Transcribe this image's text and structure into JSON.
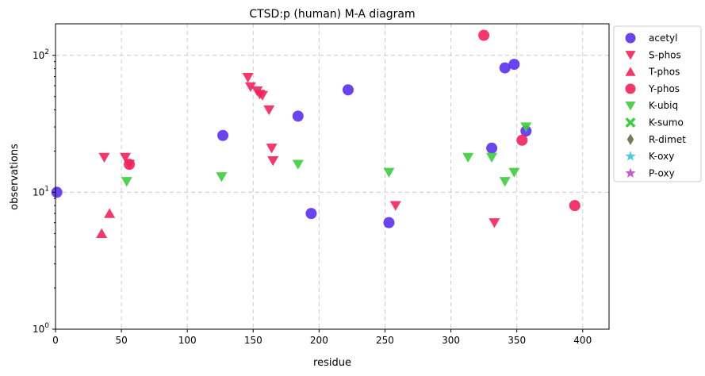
{
  "chart_data": {
    "type": "scatter",
    "title": "CTSD:p (human) M-A diagram",
    "xlabel": "residue",
    "ylabel": "observations",
    "xlim": [
      0,
      420
    ],
    "ylim": [
      1,
      170
    ],
    "yscale": "log",
    "grid": true,
    "legend_position": "outside-right",
    "xticks": [
      0,
      50,
      100,
      150,
      200,
      250,
      300,
      350,
      400
    ],
    "yticks": [
      {
        "value": 1,
        "base": "10",
        "exp": "0"
      },
      {
        "value": 10,
        "base": "10",
        "exp": "1"
      },
      {
        "value": 100,
        "base": "10",
        "exp": "2"
      }
    ],
    "series": [
      {
        "name": "acetyl",
        "marker": "circle",
        "color": "#5b2ff0",
        "points": [
          [
            1,
            10
          ],
          [
            127,
            26
          ],
          [
            184,
            36
          ],
          [
            194,
            7
          ],
          [
            222,
            56
          ],
          [
            253,
            6
          ],
          [
            331,
            21
          ],
          [
            341,
            81
          ],
          [
            348,
            86
          ],
          [
            357,
            28
          ]
        ]
      },
      {
        "name": "S-phos",
        "marker": "triangle-down",
        "color": "#f5215b",
        "points": [
          [
            37,
            18
          ],
          [
            53,
            18
          ],
          [
            56,
            16
          ],
          [
            146,
            69
          ],
          [
            148,
            59
          ],
          [
            153,
            55
          ],
          [
            155,
            52
          ],
          [
            157,
            51
          ],
          [
            162,
            40
          ],
          [
            164,
            21
          ],
          [
            165,
            17
          ],
          [
            258,
            8
          ],
          [
            333,
            6
          ]
        ]
      },
      {
        "name": "T-phos",
        "marker": "triangle-up",
        "color": "#f5215b",
        "points": [
          [
            35,
            5
          ],
          [
            41,
            7
          ]
        ]
      },
      {
        "name": "Y-phos",
        "marker": "circle",
        "color": "#f5215b",
        "points": [
          [
            56,
            16
          ],
          [
            325,
            140
          ],
          [
            354,
            24
          ],
          [
            394,
            8
          ]
        ]
      },
      {
        "name": "K-ubiq",
        "marker": "triangle-down",
        "color": "#3cce3c",
        "points": [
          [
            54,
            12
          ],
          [
            126,
            13
          ],
          [
            184,
            16
          ],
          [
            253,
            14
          ],
          [
            313,
            18
          ],
          [
            331,
            18
          ],
          [
            341,
            12
          ],
          [
            348,
            14
          ],
          [
            357,
            30
          ]
        ]
      },
      {
        "name": "K-sumo",
        "marker": "x",
        "color": "#3cce3c",
        "points": []
      },
      {
        "name": "R-dimet",
        "marker": "diamond",
        "color": "#6b6b45",
        "points": []
      },
      {
        "name": "K-oxy",
        "marker": "star",
        "color": "#3fc9d3",
        "points": []
      },
      {
        "name": "P-oxy",
        "marker": "star",
        "color": "#c447c9",
        "points": []
      }
    ]
  }
}
